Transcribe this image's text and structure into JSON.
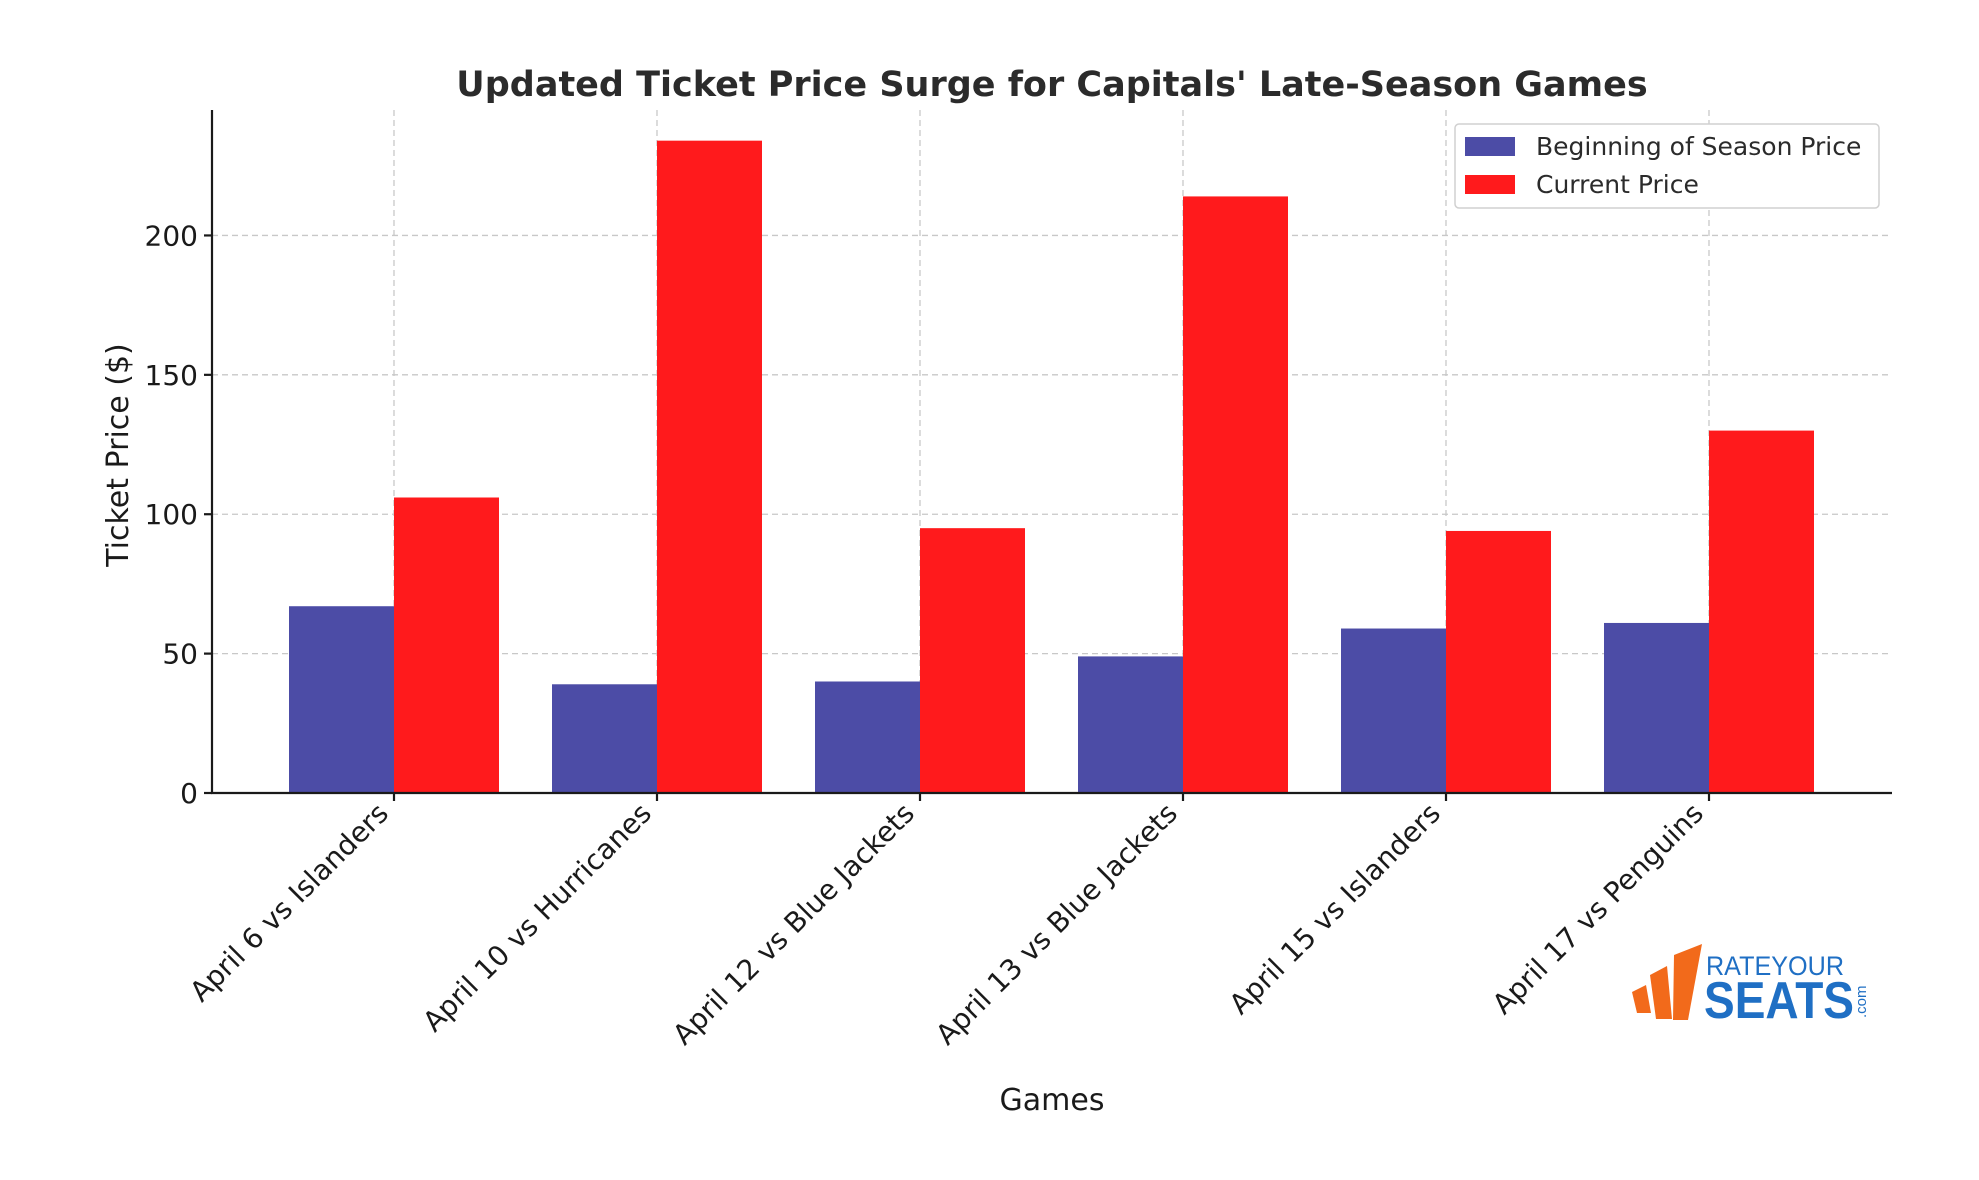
{
  "chart_data": {
    "type": "bar",
    "title": "Updated Ticket Price Surge for Capitals' Late-Season Games",
    "xlabel": "Games",
    "ylabel": "Ticket Price ($)",
    "categories": [
      "April 6 vs Islanders",
      "April 10 vs Hurricanes",
      "April 12 vs Blue Jackets",
      "April 13 vs Blue Jackets",
      "April 15 vs Islanders",
      "April 17 vs Penguins"
    ],
    "series": [
      {
        "name": "Beginning of Season Price",
        "color": "#4c4ca6",
        "values": [
          67,
          39,
          40,
          49,
          59,
          61
        ]
      },
      {
        "name": "Current Price",
        "color": "#ff1a1c",
        "values": [
          106,
          234,
          95,
          214,
          94,
          130
        ]
      }
    ],
    "yticks": [
      0,
      50,
      100,
      150,
      200
    ],
    "ylim": [
      0,
      245
    ],
    "grid": true,
    "legend_position": "top-right"
  },
  "watermark": {
    "line1": "RATEYOUR",
    "line2": "SEATS",
    "suffix": ".com",
    "colors": {
      "text": "#1f6fc4",
      "bars": "#f26a1b"
    }
  }
}
